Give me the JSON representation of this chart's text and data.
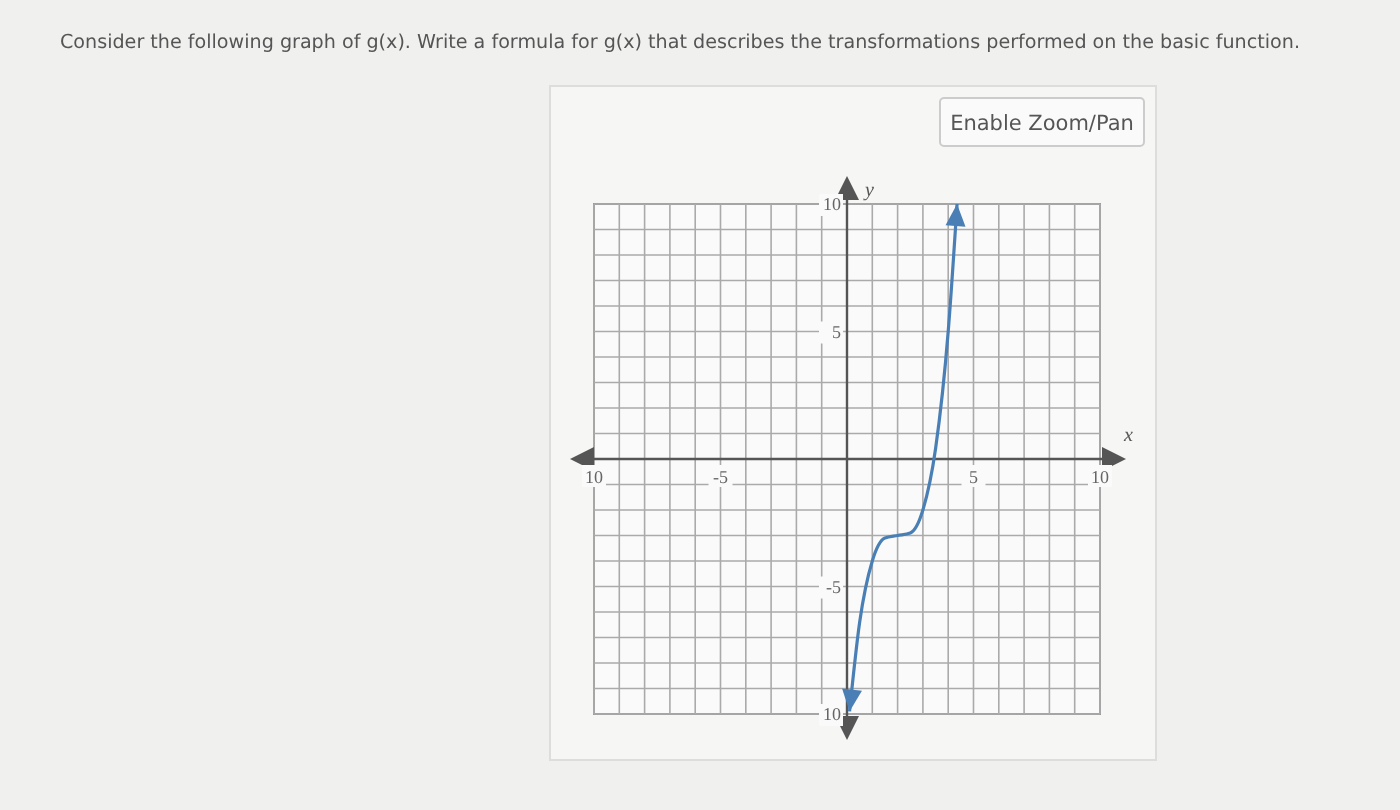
{
  "chart_data": {
    "type": "line",
    "title": "Consider the following graph of g(x). Write a formula for g(x) that describes the transformations performed on the basic function.",
    "annotations": [
      "Enable Zoom/Pan"
    ],
    "xlabel": "x",
    "ylabel": "y",
    "xlim": [
      -10,
      10
    ],
    "ylim": [
      -10,
      10
    ],
    "xticks": [
      {
        "value": -10,
        "label": "10"
      },
      {
        "value": -9,
        "label": null
      },
      {
        "value": -8,
        "label": null
      },
      {
        "value": -7,
        "label": null
      },
      {
        "value": -6,
        "label": null
      },
      {
        "value": -5,
        "label": "-5"
      },
      {
        "value": -4,
        "label": null
      },
      {
        "value": -3,
        "label": null
      },
      {
        "value": -2,
        "label": null
      },
      {
        "value": -1,
        "label": null
      },
      {
        "value": 0,
        "label": null
      },
      {
        "value": 1,
        "label": null
      },
      {
        "value": 2,
        "label": null
      },
      {
        "value": 3,
        "label": null
      },
      {
        "value": 4,
        "label": null
      },
      {
        "value": 5,
        "label": "5"
      },
      {
        "value": 6,
        "label": null
      },
      {
        "value": 7,
        "label": null
      },
      {
        "value": 8,
        "label": null
      },
      {
        "value": 9,
        "label": null
      },
      {
        "value": 10,
        "label": "10"
      }
    ],
    "yticks": [
      {
        "value": -10,
        "label": "10"
      },
      {
        "value": -9,
        "label": null
      },
      {
        "value": -8,
        "label": null
      },
      {
        "value": -7,
        "label": null
      },
      {
        "value": -6,
        "label": null
      },
      {
        "value": -5,
        "label": "-5"
      },
      {
        "value": -4,
        "label": null
      },
      {
        "value": -3,
        "label": null
      },
      {
        "value": -2,
        "label": null
      },
      {
        "value": -1,
        "label": null
      },
      {
        "value": 0,
        "label": null
      },
      {
        "value": 1,
        "label": null
      },
      {
        "value": 2,
        "label": null
      },
      {
        "value": 3,
        "label": null
      },
      {
        "value": 4,
        "label": null
      },
      {
        "value": 5,
        "label": "5"
      },
      {
        "value": 6,
        "label": null
      },
      {
        "value": 7,
        "label": null
      },
      {
        "value": 8,
        "label": null
      },
      {
        "value": 9,
        "label": null
      },
      {
        "value": 10,
        "label": "10"
      }
    ],
    "grid": true,
    "marker": "none",
    "line_style": "solid",
    "series": [
      {
        "color": "#4a7fb5",
        "x": [
          0.1,
          0.5,
          1,
          1.5,
          2,
          2.5,
          3,
          3.5,
          4,
          4.35
        ],
        "values": [
          -9.9,
          -6.4,
          -4,
          -3.1,
          -3,
          -2.9,
          -2,
          0.4,
          5,
          10
        ]
      }
    ]
  }
}
